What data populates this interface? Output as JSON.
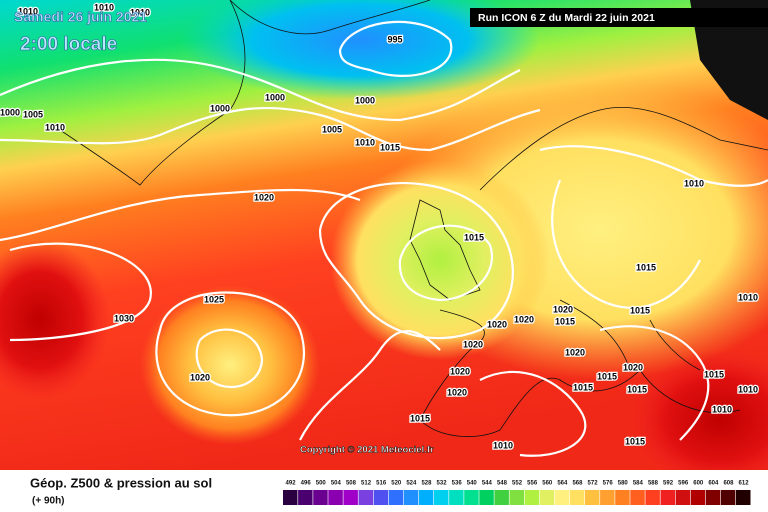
{
  "header": {
    "date": "Samedi 26 juin 2021",
    "time": "2:00 locale",
    "run": "Run ICON 6 Z du Mardi 22 juin 2021"
  },
  "map": {
    "isobar_labels": [
      1010,
      1010,
      1010,
      995,
      1000,
      1000,
      1000,
      1005,
      1010,
      1000,
      1005,
      1010,
      1015,
      1020,
      1015,
      1025,
      1030,
      1020,
      1010,
      1015,
      1020,
      1015,
      1020,
      1020,
      1020,
      1020,
      1015,
      1020,
      1020,
      1015,
      1015,
      1015,
      1015,
      1010,
      1015,
      1010,
      1015,
      1010,
      1010,
      1020
    ],
    "copyright": "Copyright © 2021 Meteociel.fr"
  },
  "legend": {
    "title": "Géop. Z500 & pression au sol",
    "lead": "(+ 90h)",
    "values": [
      492,
      496,
      500,
      504,
      508,
      512,
      516,
      520,
      524,
      528,
      532,
      536,
      540,
      544,
      548,
      552,
      556,
      560,
      564,
      568,
      572,
      576,
      580,
      584,
      588,
      592,
      596,
      600,
      604,
      608,
      612
    ],
    "colors": [
      "#2a0040",
      "#4b0070",
      "#6a0090",
      "#8a00b0",
      "#a000c8",
      "#7a40e0",
      "#5050f0",
      "#3070ff",
      "#2090ff",
      "#00b0ff",
      "#00d0f0",
      "#00e0c0",
      "#00e090",
      "#00d060",
      "#40d040",
      "#80e040",
      "#b0f040",
      "#e0f060",
      "#fff080",
      "#ffe060",
      "#ffc040",
      "#ffa030",
      "#ff8020",
      "#ff6020",
      "#ff4020",
      "#f02020",
      "#d01010",
      "#b00000",
      "#800000",
      "#500000",
      "#200000"
    ]
  }
}
